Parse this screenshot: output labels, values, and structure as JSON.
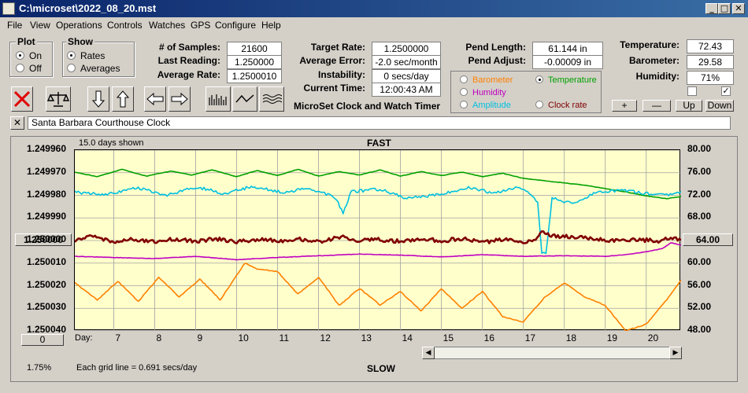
{
  "window": {
    "title": "C:\\microset\\2022_08_20.mst",
    "min_glyph": "_",
    "max_glyph": "□",
    "close_glyph": "✕"
  },
  "menu": {
    "items": [
      "File",
      "View",
      "Operations",
      "Controls",
      "Watches",
      "GPS",
      "Configure",
      "Help"
    ]
  },
  "plot_group": {
    "label": "Plot",
    "options": [
      "On",
      "Off"
    ],
    "selected": "On"
  },
  "show_group": {
    "label": "Show",
    "options": [
      "Rates",
      "Averages"
    ],
    "selected": "Rates"
  },
  "stats": [
    {
      "label": "# of Samples:",
      "value": "21600"
    },
    {
      "label": "Last Reading:",
      "value": "1.250000"
    },
    {
      "label": "Average Rate:",
      "value": "1.2500010"
    }
  ],
  "rates": [
    {
      "label": "Target Rate:",
      "value": "1.2500000"
    },
    {
      "label": "Average Error:",
      "value": "-2.0 sec/month"
    },
    {
      "label": "Instability:",
      "value": "0 secs/day"
    },
    {
      "label": "Current Time:",
      "value": "12:00:43 AM"
    }
  ],
  "pend": [
    {
      "label": "Pend Length:",
      "value": "61.144 in"
    },
    {
      "label": "Pend Adjust:",
      "value": "-0.00009 in"
    }
  ],
  "env": [
    {
      "label": "Temperature:",
      "value": "72.43"
    },
    {
      "label": "Barometer:",
      "value": "29.58"
    },
    {
      "label": "Humidity:",
      "value": "71%"
    }
  ],
  "app_caption": "MicroSet Clock and Watch Timer",
  "sensor_legend": {
    "selected": "Temperature",
    "items": [
      {
        "name": "Barometer",
        "color": "#ff8000"
      },
      {
        "name": "Temperature",
        "color": "#00a000"
      },
      {
        "name": "Humidity",
        "color": "#c000c0"
      },
      {
        "name": "Amplitude",
        "color": "#00c0e0"
      },
      {
        "name": "Clock rate",
        "color": "#800000"
      }
    ]
  },
  "checkboxes": {
    "left_checked": false,
    "right_checked": true,
    "check_glyph": "✓"
  },
  "adjust_buttons": {
    "plus": "+",
    "minus": "—",
    "up": "Up",
    "down": "Down"
  },
  "description": "Santa Barbara Courthouse Clock",
  "close_desc_glyph": "✕",
  "graph": {
    "days_shown": "15.0 days shown",
    "top_label": "FAST",
    "bottom_label": "SLOW",
    "grid_note": "Each grid line = 0.691 secs/day",
    "percent": "1.75%",
    "left_button": "1.250000",
    "right_button": "64.00",
    "bottom_left_button": "0",
    "day_label": "Day:"
  },
  "chart_data": {
    "type": "line",
    "xlabel": "Day:",
    "x_ticks": [
      7,
      8,
      9,
      10,
      11,
      12,
      13,
      14,
      15,
      16,
      17,
      18,
      19,
      20
    ],
    "xlim": [
      6.05,
      20.85
    ],
    "left_axis": {
      "ticks": [
        "1.249960",
        "1.249970",
        "1.249980",
        "1.249990",
        "1.250000",
        "1.250010",
        "1.250020",
        "1.250030",
        "1.250040"
      ],
      "range": [
        1.25004,
        1.24996
      ]
    },
    "right_axis": {
      "ticks": [
        "80.00",
        "76.00",
        "72.00",
        "68.00",
        "64.00",
        "60.00",
        "56.00",
        "52.00",
        "48.00"
      ],
      "range": [
        48,
        80
      ]
    },
    "series": [
      {
        "name": "Temperature",
        "color": "#00a000",
        "axis": "right",
        "points": [
          [
            6.05,
            76.1
          ],
          [
            6.6,
            75.3
          ],
          [
            7.2,
            76.6
          ],
          [
            7.8,
            75.4
          ],
          [
            8.4,
            76.3
          ],
          [
            8.9,
            75.6
          ],
          [
            9.4,
            76.5
          ],
          [
            10.0,
            75.3
          ],
          [
            10.5,
            76.4
          ],
          [
            11.0,
            75.5
          ],
          [
            11.5,
            76.6
          ],
          [
            12.0,
            75.4
          ],
          [
            12.5,
            76.2
          ],
          [
            13.0,
            75.6
          ],
          [
            13.5,
            76.5
          ],
          [
            14.0,
            75.4
          ],
          [
            14.5,
            76.2
          ],
          [
            15.0,
            75.5
          ],
          [
            15.5,
            76.1
          ],
          [
            16.0,
            75.3
          ],
          [
            16.5,
            75.9
          ],
          [
            17.0,
            75.0
          ],
          [
            17.5,
            74.6
          ],
          [
            18.0,
            74.2
          ],
          [
            18.5,
            73.8
          ],
          [
            19.0,
            73.2
          ],
          [
            19.5,
            72.6
          ],
          [
            20.0,
            71.9
          ],
          [
            20.5,
            71.4
          ],
          [
            20.85,
            71.8
          ]
        ]
      },
      {
        "name": "Amplitude",
        "color": "#00c0e0",
        "axis": "right",
        "points": [
          [
            6.05,
            72.5
          ],
          [
            6.8,
            72.2
          ],
          [
            7.6,
            73.3
          ],
          [
            8.3,
            72.0
          ],
          [
            9.0,
            73.5
          ],
          [
            9.7,
            72.3
          ],
          [
            10.4,
            73.6
          ],
          [
            11.1,
            72.5
          ],
          [
            11.8,
            73.2
          ],
          [
            12.4,
            71.6
          ],
          [
            12.6,
            69.0
          ],
          [
            12.8,
            72.6
          ],
          [
            13.5,
            73.1
          ],
          [
            14.2,
            71.4
          ],
          [
            15.0,
            72.3
          ],
          [
            15.7,
            73.4
          ],
          [
            16.3,
            72.3
          ],
          [
            16.9,
            73.6
          ],
          [
            17.35,
            71.0
          ],
          [
            17.45,
            62.0
          ],
          [
            17.55,
            61.5
          ],
          [
            17.7,
            71.5
          ],
          [
            18.2,
            70.5
          ],
          [
            18.8,
            72.5
          ],
          [
            19.4,
            73.0
          ],
          [
            19.9,
            72.4
          ],
          [
            20.5,
            72.0
          ],
          [
            20.85,
            72.6
          ]
        ]
      },
      {
        "name": "Clock rate",
        "color": "#800000",
        "axis": "left",
        "points": [
          [
            6.05,
            1.25
          ],
          [
            6.5,
            1.2499981
          ],
          [
            7.0,
            1.2500005
          ],
          [
            7.5,
            1.2499995
          ],
          [
            8.0,
            1.2500007
          ],
          [
            8.5,
            1.2499993
          ],
          [
            9.0,
            1.2500004
          ],
          [
            9.5,
            1.2499992
          ],
          [
            10.0,
            1.2500006
          ],
          [
            10.5,
            1.2499995
          ],
          [
            11.0,
            1.2500002
          ],
          [
            11.5,
            1.2499992
          ],
          [
            12.0,
            1.2500005
          ],
          [
            12.55,
            1.2499985
          ],
          [
            12.65,
            1.249998
          ],
          [
            12.8,
            1.2500003
          ],
          [
            13.5,
            1.2499996
          ],
          [
            14.0,
            1.2500004
          ],
          [
            14.5,
            1.2499993
          ],
          [
            15.0,
            1.2500001
          ],
          [
            15.5,
            1.2499992
          ],
          [
            16.0,
            1.2500007
          ],
          [
            16.5,
            1.2499997
          ],
          [
            17.0,
            1.2500005
          ],
          [
            17.3,
            1.2499996
          ],
          [
            17.45,
            1.2499955
          ],
          [
            17.6,
            1.2499972
          ],
          [
            17.8,
            1.2499982
          ],
          [
            18.3,
            1.2499984
          ],
          [
            18.8,
            1.2499994
          ],
          [
            19.3,
            1.2500001
          ],
          [
            19.8,
            1.2499996
          ],
          [
            20.3,
            1.2500002
          ],
          [
            20.6,
            1.249999
          ],
          [
            20.85,
            1.2499998
          ]
        ]
      },
      {
        "name": "Humidity",
        "color": "#c000c0",
        "axis": "right",
        "points": [
          [
            6.05,
            61.2
          ],
          [
            7.0,
            61.0
          ],
          [
            8.0,
            60.8
          ],
          [
            9.0,
            61.2
          ],
          [
            10.0,
            60.6
          ],
          [
            11.0,
            61.0
          ],
          [
            12.0,
            61.3
          ],
          [
            13.0,
            61.6
          ],
          [
            14.0,
            61.4
          ],
          [
            15.0,
            61.1
          ],
          [
            16.0,
            61.5
          ],
          [
            17.0,
            61.2
          ],
          [
            18.0,
            61.3
          ],
          [
            19.0,
            61.2
          ],
          [
            19.5,
            61.5
          ],
          [
            20.0,
            62.0
          ],
          [
            20.4,
            62.6
          ],
          [
            20.6,
            63.6
          ],
          [
            20.85,
            63.2
          ]
        ]
      },
      {
        "name": "Barometer",
        "color": "#ff8000",
        "axis": "right",
        "points": [
          [
            6.05,
            56.5
          ],
          [
            6.6,
            53.5
          ],
          [
            7.1,
            56.8
          ],
          [
            7.6,
            53.2
          ],
          [
            8.1,
            57.5
          ],
          [
            8.6,
            54.0
          ],
          [
            9.1,
            57.2
          ],
          [
            9.6,
            53.5
          ],
          [
            10.0,
            57.8
          ],
          [
            10.2,
            60.0
          ],
          [
            10.5,
            59.0
          ],
          [
            11.0,
            58.5
          ],
          [
            11.5,
            54.5
          ],
          [
            12.0,
            57.5
          ],
          [
            12.5,
            52.5
          ],
          [
            13.0,
            55.5
          ],
          [
            13.5,
            52.6
          ],
          [
            14.0,
            55.0
          ],
          [
            14.5,
            51.5
          ],
          [
            15.0,
            55.5
          ],
          [
            15.5,
            52.0
          ],
          [
            16.0,
            55.0
          ],
          [
            16.5,
            50.5
          ],
          [
            17.0,
            49.6
          ],
          [
            17.5,
            53.8
          ],
          [
            18.0,
            56.5
          ],
          [
            18.5,
            54.0
          ],
          [
            19.0,
            52.5
          ],
          [
            19.5,
            48.0
          ],
          [
            20.0,
            49.2
          ],
          [
            20.5,
            53.5
          ],
          [
            20.85,
            57.0
          ]
        ]
      }
    ]
  }
}
